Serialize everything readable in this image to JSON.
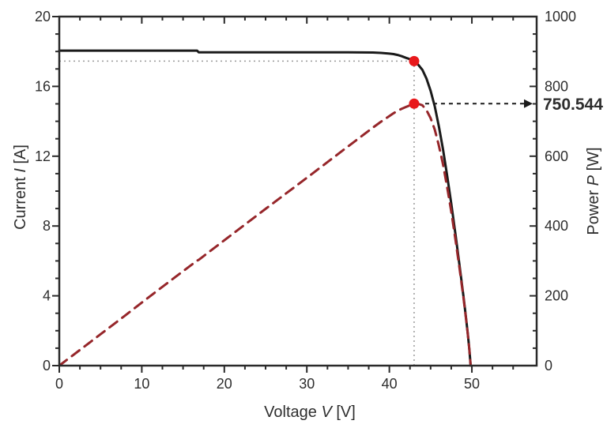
{
  "figure": {
    "background": "#ffffff"
  },
  "chart_data": {
    "type": "line",
    "title": "",
    "x_axis": {
      "label_prefix": "Voltage ",
      "label_symbol": "V",
      "label_suffix": " [V]",
      "min": 0,
      "max": 57.85,
      "major_ticks": [
        0,
        10,
        20,
        30,
        40,
        50
      ],
      "minor_step": 2.5,
      "grid": false
    },
    "y_left_axis": {
      "label_prefix": "Current ",
      "label_symbol": "I",
      "label_suffix": " [A]",
      "min": 0,
      "max": 20,
      "major_ticks": [
        0,
        4,
        8,
        12,
        16,
        20
      ],
      "minor_step": 1,
      "grid": false
    },
    "y_right_axis": {
      "label_prefix": "Power ",
      "label_symbol": "P",
      "label_suffix": " [W]",
      "min": 0,
      "max": 1000,
      "major_ticks": [
        0,
        200,
        400,
        600,
        800,
        1000
      ],
      "minor_step": 50,
      "grid": false
    },
    "series": [
      {
        "name": "iv-curve",
        "axis": "left",
        "color": "#1a1a1a",
        "style": "solid",
        "points": [
          [
            0,
            18.05
          ],
          [
            4,
            18.05
          ],
          [
            8,
            18.05
          ],
          [
            12,
            18.05
          ],
          [
            16.7,
            18.05
          ],
          [
            16.9,
            17.95
          ],
          [
            20,
            17.95
          ],
          [
            25,
            17.95
          ],
          [
            30,
            17.95
          ],
          [
            35,
            17.95
          ],
          [
            38,
            17.94
          ],
          [
            39,
            17.92
          ],
          [
            40,
            17.88
          ],
          [
            40.5,
            17.85
          ],
          [
            41,
            17.8
          ],
          [
            41.5,
            17.73
          ],
          [
            42,
            17.64
          ],
          [
            42.5,
            17.56
          ],
          [
            43,
            17.45
          ],
          [
            43.5,
            17.24
          ],
          [
            44,
            16.95
          ],
          [
            44.5,
            16.45
          ],
          [
            45,
            15.75
          ],
          [
            45.5,
            14.85
          ],
          [
            46,
            13.7
          ],
          [
            46.5,
            12.4
          ],
          [
            47,
            10.9
          ],
          [
            47.5,
            9.3
          ],
          [
            48,
            7.55
          ],
          [
            48.5,
            5.75
          ],
          [
            49,
            3.9
          ],
          [
            49.3,
            2.7
          ],
          [
            49.5,
            1.85
          ],
          [
            49.7,
            0.9
          ],
          [
            49.85,
            0
          ]
        ]
      },
      {
        "name": "pv-curve",
        "axis": "right",
        "color": "#96262a",
        "style": "dashed",
        "points": [
          [
            0,
            0
          ],
          [
            4,
            72
          ],
          [
            8,
            144
          ],
          [
            12,
            217
          ],
          [
            16.7,
            301
          ],
          [
            16.9,
            303
          ],
          [
            20,
            359
          ],
          [
            25,
            449
          ],
          [
            30,
            538
          ],
          [
            35,
            628
          ],
          [
            38,
            682
          ],
          [
            39,
            699
          ],
          [
            40,
            715
          ],
          [
            40.5,
            723
          ],
          [
            41,
            730
          ],
          [
            41.5,
            736
          ],
          [
            42,
            741
          ],
          [
            42.5,
            746
          ],
          [
            43,
            750.5
          ],
          [
            43.5,
            750
          ],
          [
            44,
            746
          ],
          [
            44.5,
            732
          ],
          [
            45,
            709
          ],
          [
            45.5,
            676
          ],
          [
            46,
            630
          ],
          [
            46.5,
            577
          ],
          [
            47,
            512
          ],
          [
            47.5,
            442
          ],
          [
            48,
            362
          ],
          [
            48.5,
            279
          ],
          [
            49,
            191
          ],
          [
            49.3,
            133
          ],
          [
            49.5,
            92
          ],
          [
            49.7,
            45
          ],
          [
            49.85,
            0
          ]
        ]
      }
    ],
    "annotations": {
      "mpp_voltage": 43,
      "mpp_current": 17.45,
      "mpp_power": 750.544,
      "power_label": "750.544",
      "power_label_color": "#c4252b",
      "marker_color": "#e8191c",
      "guide_color": "#9a9a9a",
      "arrow_color": "#1a1a1a"
    },
    "axis_color": "#2a2a2a",
    "tick_label_color": "#2e2e2e"
  }
}
